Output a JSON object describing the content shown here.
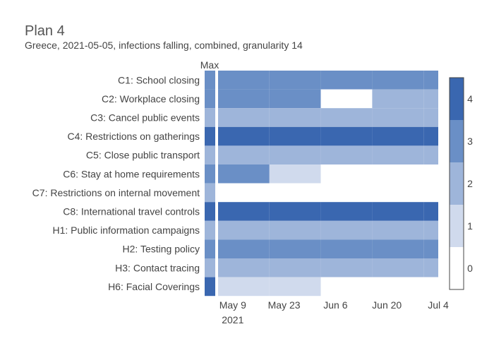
{
  "chart_data": {
    "type": "heatmap",
    "title": "Plan 4",
    "subtitle": "Greece, 2021-05-05, infections falling, combined, granularity 14",
    "max_column_label": "Max",
    "start_date": "2021-05-05",
    "x_ticks": [
      {
        "date": "2021-05-09",
        "label": "May 9",
        "sublabel": "2021"
      },
      {
        "date": "2021-05-23",
        "label": "May 23",
        "sublabel": ""
      },
      {
        "date": "2021-06-06",
        "label": "Jun 6",
        "sublabel": ""
      },
      {
        "date": "2021-06-20",
        "label": "Jun 20",
        "sublabel": ""
      },
      {
        "date": "2021-07-04",
        "label": "Jul 4",
        "sublabel": ""
      }
    ],
    "periods": [
      {
        "start": "2021-05-05",
        "end": "2021-05-19"
      },
      {
        "start": "2021-05-19",
        "end": "2021-06-02"
      },
      {
        "start": "2021-06-02",
        "end": "2021-06-16"
      },
      {
        "start": "2021-06-16",
        "end": "2021-06-30"
      },
      {
        "start": "2021-06-30",
        "end": "2021-07-04"
      }
    ],
    "rows": [
      {
        "label": "C1: School closing",
        "max": 3,
        "values": [
          3,
          3,
          3,
          3,
          3
        ]
      },
      {
        "label": "C2: Workplace closing",
        "max": 3,
        "values": [
          3,
          3,
          0,
          2,
          2
        ]
      },
      {
        "label": "C3: Cancel public events",
        "max": 2,
        "values": [
          2,
          2,
          2,
          2,
          2
        ]
      },
      {
        "label": "C4: Restrictions on gatherings",
        "max": 4,
        "values": [
          4,
          4,
          4,
          4,
          4
        ]
      },
      {
        "label": "C5: Close public transport",
        "max": 2,
        "values": [
          2,
          2,
          2,
          2,
          2
        ]
      },
      {
        "label": "C6: Stay at home requirements",
        "max": 3,
        "values": [
          3,
          1,
          0,
          0,
          0
        ]
      },
      {
        "label": "C7: Restrictions on internal movement",
        "max": 2,
        "values": [
          0,
          0,
          0,
          0,
          0
        ]
      },
      {
        "label": "C8: International travel controls",
        "max": 4,
        "values": [
          4,
          4,
          4,
          4,
          4
        ]
      },
      {
        "label": "H1: Public information campaigns",
        "max": 2,
        "values": [
          2,
          2,
          2,
          2,
          2
        ]
      },
      {
        "label": "H2: Testing policy",
        "max": 3,
        "values": [
          3,
          3,
          3,
          3,
          3
        ]
      },
      {
        "label": "H3: Contact tracing",
        "max": 2,
        "values": [
          2,
          2,
          2,
          2,
          2
        ]
      },
      {
        "label": "H6: Facial Coverings",
        "max": 4,
        "values": [
          1,
          1,
          0,
          0,
          0
        ]
      }
    ],
    "colorscale": {
      "levels": [
        0,
        1,
        2,
        3,
        4
      ],
      "colors": [
        "#ffffff",
        "#d0daed",
        "#9eb5da",
        "#6a8fc6",
        "#3a67b0"
      ],
      "range": [
        -0.5,
        4.5
      ]
    },
    "legend_placement": "right"
  }
}
